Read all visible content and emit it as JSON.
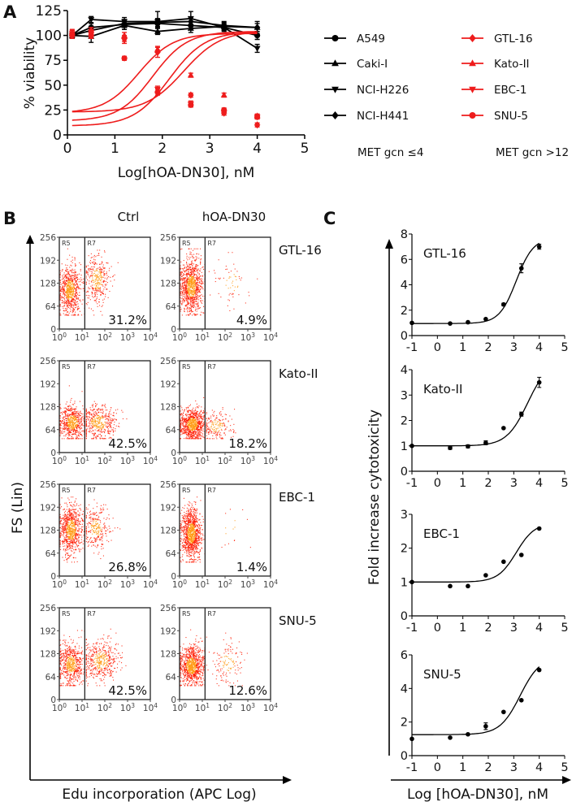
{
  "panel_labels": {
    "a": "A",
    "b": "B",
    "c": "C"
  },
  "colors": {
    "black": "#000000",
    "red": "#ee1c1c",
    "dot_core": "#ff9a10",
    "dot_edge": "#ff1a00"
  },
  "chart_data": [
    {
      "panel": "A",
      "type": "line",
      "xlabel": "Log[hOA-DN30], nM",
      "ylabel": "% viability",
      "xlim": [
        0,
        5
      ],
      "ylim": [
        0,
        125
      ],
      "xticks": [
        0,
        1,
        2,
        3,
        4,
        5
      ],
      "yticks": [
        0,
        25,
        50,
        75,
        100,
        125
      ],
      "x": [
        0.1,
        0.5,
        1.2,
        1.9,
        2.6,
        3.3,
        4.0
      ],
      "legend_groups": [
        {
          "label": "MET gcn ≤4",
          "color": "#000000"
        },
        {
          "label": "MET gcn >12",
          "color": "#ee1c1c"
        }
      ],
      "series": [
        {
          "name": "A549",
          "group": 0,
          "marker": "circle",
          "values": [
            100,
            108,
            111,
            112,
            110,
            108,
            100
          ],
          "err": [
            3,
            4,
            5,
            4,
            4,
            3,
            4
          ]
        },
        {
          "name": "Caki-I",
          "group": 0,
          "marker": "triangle-up",
          "values": [
            100,
            99,
            110,
            104,
            107,
            109,
            108
          ],
          "err": [
            3,
            6,
            4,
            3,
            4,
            4,
            4
          ]
        },
        {
          "name": "NCI-H226",
          "group": 0,
          "marker": "triangle-down",
          "values": [
            100,
            116,
            114,
            114,
            117,
            108,
            87
          ],
          "err": [
            3,
            3,
            4,
            10,
            7,
            4,
            4
          ]
        },
        {
          "name": "NCI-H441",
          "group": 0,
          "marker": "diamond",
          "values": [
            100,
            105,
            112,
            113,
            114,
            110,
            108
          ],
          "err": [
            3,
            4,
            4,
            4,
            4,
            4,
            6
          ]
        },
        {
          "name": "GTL-16",
          "group": 1,
          "marker": "diamond",
          "values": [
            102,
            103,
            97,
            83,
            40,
            22,
            10
          ],
          "err": [
            3,
            3,
            3,
            5,
            2,
            2,
            2
          ],
          "fit": {
            "bottom": 9,
            "top": 104,
            "logec50": 2.15,
            "hill": 1.15
          }
        },
        {
          "name": "Kato-II",
          "group": 1,
          "marker": "triangle-up",
          "values": [
            103,
            105,
            100,
            86,
            60,
            40,
            19
          ],
          "err": [
            3,
            3,
            3,
            3,
            2,
            2,
            2
          ],
          "fit": {
            "bottom": 23,
            "top": 105,
            "logec50": 2.45,
            "hill": 1.1
          }
        },
        {
          "name": "EBC-1",
          "group": 1,
          "marker": "triangle-down",
          "values": [
            102,
            103,
            95,
            46,
            31,
            22,
            18
          ],
          "err": [
            3,
            3,
            3,
            3,
            3,
            2,
            2
          ],
          "fit": {
            "bottom": 14,
            "top": 104,
            "logec50": 1.8,
            "hill": 1.2
          }
        },
        {
          "name": "SNU-5",
          "group": 1,
          "marker": "circle",
          "values": [
            100,
            100,
            77,
            43,
            30,
            25,
            18
          ],
          "err": [
            3,
            3,
            2,
            3,
            2,
            2,
            2
          ],
          "fit": {
            "bottom": 22,
            "top": 102,
            "logec50": 1.5,
            "hill": 1.2
          }
        }
      ]
    },
    {
      "panel": "B",
      "type": "scatter",
      "column_headers": [
        "Ctrl",
        "hOA-DN30"
      ],
      "ylabel": "FS (Lin)",
      "xlabel": "Edu incorporation (APC Log)",
      "yticks": [
        "256",
        "192",
        "128",
        "64",
        "0"
      ],
      "xtick_exponents": [
        "0",
        "1",
        "2",
        "3",
        "4"
      ],
      "xtick_base": "10",
      "gate_labels": [
        "R5",
        "R7"
      ],
      "rows": [
        {
          "cell_line": "GTL-16",
          "ctrl_pct": "31.2%",
          "treated_pct": "4.9%"
        },
        {
          "cell_line": "Kato-II",
          "ctrl_pct": "42.5%",
          "treated_pct": "18.2%"
        },
        {
          "cell_line": "EBC-1",
          "ctrl_pct": "26.8%",
          "treated_pct": "1.4%"
        },
        {
          "cell_line": "SNU-5",
          "ctrl_pct": "42.5%",
          "treated_pct": "12.6%"
        }
      ]
    },
    {
      "panel": "C",
      "type": "line",
      "ylabel": "Fold increase cytotoxicity",
      "xlabel": "Log [hOA-DN30], nM",
      "xlim": [
        -1,
        5
      ],
      "xticks": [
        -1,
        0,
        1,
        2,
        3,
        4,
        5
      ],
      "x": [
        -1,
        0.5,
        1.2,
        1.9,
        2.6,
        3.3,
        4.0
      ],
      "subplots": [
        {
          "name": "GTL-16",
          "ylim": [
            0,
            8
          ],
          "yticks": [
            0,
            2,
            4,
            6,
            8
          ],
          "values": [
            1.0,
            0.95,
            1.05,
            1.3,
            2.45,
            5.3,
            7.0
          ],
          "err": [
            0,
            0,
            0,
            0,
            0.1,
            0.35,
            0.2
          ],
          "fit": {
            "bottom": 0.95,
            "top": 7.7,
            "logec50": 3.1,
            "hill": 1.3
          }
        },
        {
          "name": "Kato-II",
          "ylim": [
            0,
            4
          ],
          "yticks": [
            0,
            1,
            2,
            3,
            4
          ],
          "values": [
            1.0,
            0.92,
            0.98,
            1.12,
            1.7,
            2.25,
            3.5
          ],
          "err": [
            0,
            0.06,
            0.06,
            0.08,
            0,
            0.08,
            0.2
          ],
          "fit": {
            "bottom": 1.0,
            "top": 4.4,
            "logec50": 3.55,
            "hill": 1.05
          }
        },
        {
          "name": "EBC-1",
          "ylim": [
            0,
            3
          ],
          "yticks": [
            0,
            1,
            2,
            3
          ],
          "values": [
            1.0,
            0.88,
            0.88,
            1.2,
            1.6,
            1.8,
            2.58
          ],
          "err": [
            0,
            0,
            0,
            0,
            0,
            0,
            0
          ],
          "fit": {
            "bottom": 1.0,
            "top": 2.75,
            "logec50": 3.1,
            "hill": 1.2
          }
        },
        {
          "name": "SNU-5",
          "ylim": [
            0,
            6
          ],
          "yticks": [
            0,
            2,
            4,
            6
          ],
          "values": [
            1.0,
            1.07,
            1.27,
            1.75,
            2.6,
            3.3,
            5.1
          ],
          "err": [
            0,
            0,
            0,
            0.2,
            0,
            0,
            0
          ],
          "fit": {
            "bottom": 1.25,
            "top": 5.9,
            "logec50": 3.25,
            "hill": 1.1
          }
        }
      ]
    }
  ]
}
